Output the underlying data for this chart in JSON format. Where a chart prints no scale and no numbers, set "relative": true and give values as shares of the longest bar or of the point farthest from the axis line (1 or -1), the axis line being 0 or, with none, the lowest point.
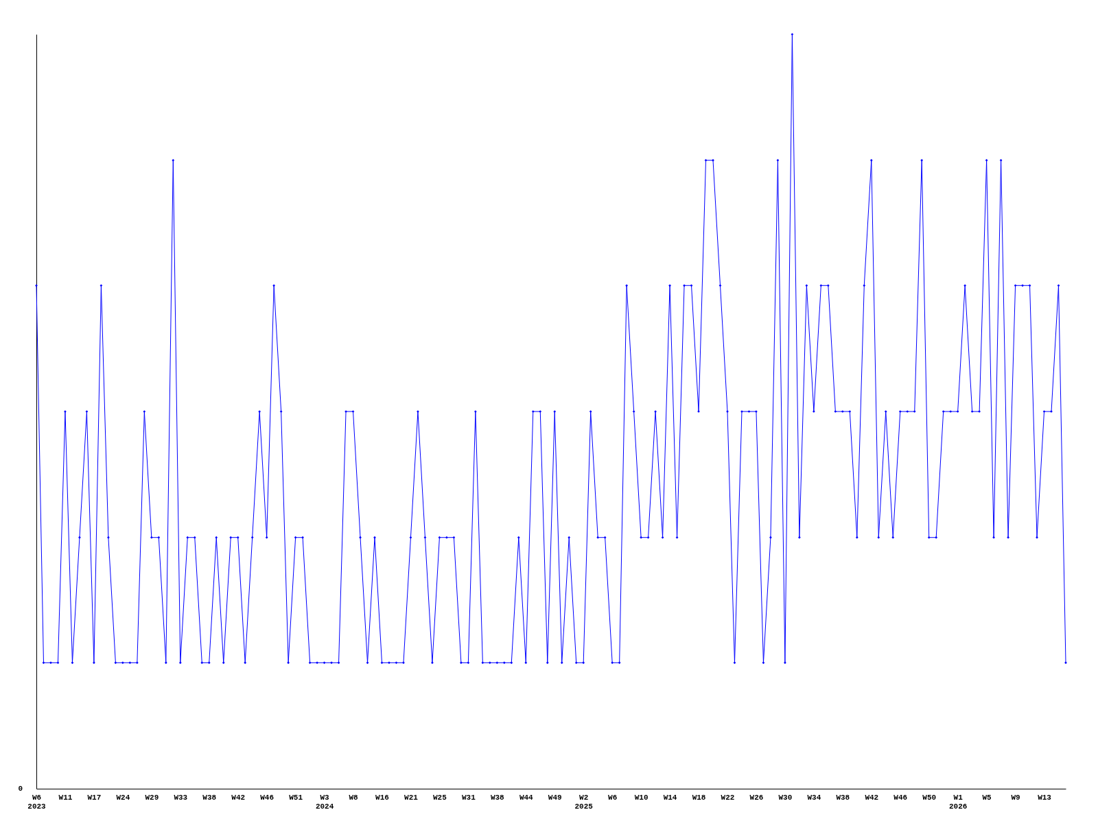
{
  "chart_data": {
    "type": "line",
    "relative": true,
    "marker": "diamond",
    "color": "#0000ff",
    "annotations": [
      "0"
    ],
    "categories": [
      "W6\n2023",
      null,
      null,
      null,
      "W11",
      null,
      null,
      null,
      "W17",
      null,
      null,
      null,
      "W24",
      null,
      null,
      null,
      "W29",
      null,
      null,
      null,
      "W33",
      null,
      null,
      null,
      "W38",
      null,
      null,
      null,
      "W42",
      null,
      null,
      null,
      "W46",
      null,
      null,
      null,
      "W51",
      null,
      null,
      null,
      "W3\n2024",
      null,
      null,
      null,
      "W8",
      null,
      null,
      null,
      "W16",
      null,
      null,
      null,
      "W21",
      null,
      null,
      null,
      "W25",
      null,
      null,
      null,
      "W31",
      null,
      null,
      null,
      "W38",
      null,
      null,
      null,
      "W44",
      null,
      null,
      null,
      "W49",
      null,
      null,
      null,
      "W2\n2025",
      null,
      null,
      null,
      "W6",
      null,
      null,
      null,
      "W10",
      null,
      null,
      null,
      "W14",
      null,
      null,
      null,
      "W18",
      null,
      null,
      null,
      "W22",
      null,
      null,
      null,
      "W26",
      null,
      null,
      null,
      "W30",
      null,
      null,
      null,
      "W34",
      null,
      null,
      null,
      "W38",
      null,
      null,
      null,
      "W42",
      null,
      null,
      null,
      "W46",
      null,
      null,
      null,
      "W50",
      null,
      null,
      null,
      "W1\n2026",
      null,
      null,
      null,
      "W5",
      null,
      null,
      null,
      "W9",
      null,
      null,
      null,
      "W13",
      null,
      null,
      null
    ],
    "values": [
      0.667,
      0.167,
      0.167,
      0.167,
      0.5,
      0.167,
      0.333,
      0.5,
      0.167,
      0.667,
      0.333,
      0.167,
      0.167,
      0.167,
      0.167,
      0.5,
      0.333,
      0.333,
      0.167,
      0.833,
      0.167,
      0.333,
      0.333,
      0.167,
      0.167,
      0.333,
      0.167,
      0.333,
      0.333,
      0.167,
      0.333,
      0.5,
      0.333,
      0.667,
      0.5,
      0.167,
      0.333,
      0.333,
      0.167,
      0.167,
      0.167,
      0.167,
      0.167,
      0.5,
      0.5,
      0.333,
      0.167,
      0.333,
      0.167,
      0.167,
      0.167,
      0.167,
      0.333,
      0.5,
      0.333,
      0.167,
      0.333,
      0.333,
      0.333,
      0.167,
      0.167,
      0.5,
      0.167,
      0.167,
      0.167,
      0.167,
      0.167,
      0.333,
      0.167,
      0.5,
      0.5,
      0.167,
      0.5,
      0.167,
      0.333,
      0.167,
      0.167,
      0.5,
      0.333,
      0.333,
      0.167,
      0.167,
      0.667,
      0.5,
      0.333,
      0.333,
      0.5,
      0.333,
      0.667,
      0.333,
      0.667,
      0.667,
      0.5,
      0.833,
      0.833,
      0.667,
      0.5,
      0.167,
      0.5,
      0.5,
      0.5,
      0.167,
      0.333,
      0.833,
      0.167,
      1,
      0.333,
      0.667,
      0.5,
      0.667,
      0.667,
      0.5,
      0.5,
      0.5,
      0.333,
      0.667,
      0.833,
      0.333,
      0.5,
      0.333,
      0.5,
      0.5,
      0.5,
      0.833,
      0.333,
      0.333,
      0.5,
      0.5,
      0.5,
      0.667,
      0.5,
      0.5,
      0.833,
      0.333,
      0.833,
      0.333,
      0.667,
      0.667,
      0.667,
      0.333,
      0.5,
      0.5,
      0.667,
      0.167
    ]
  }
}
